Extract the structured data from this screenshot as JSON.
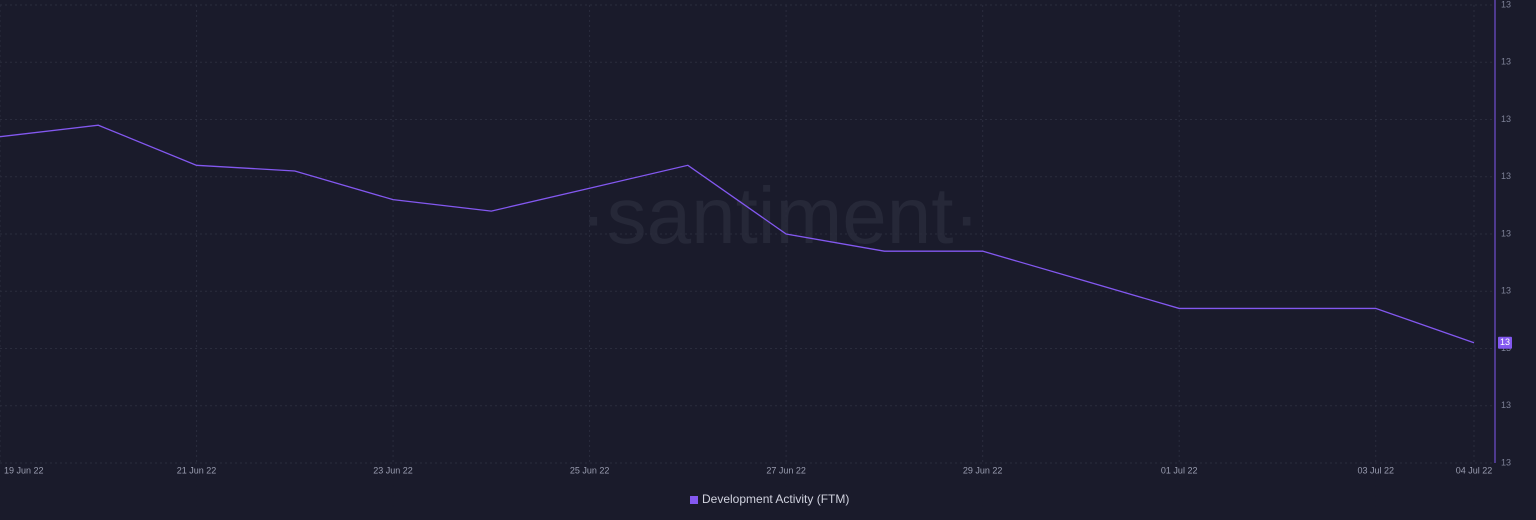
{
  "chart_data": {
    "type": "line",
    "watermark": "·santiment·",
    "categories": [
      "19 Jun 22",
      null,
      "21 Jun 22",
      null,
      "23 Jun 22",
      null,
      "25 Jun 22",
      null,
      "27 Jun 22",
      null,
      "29 Jun 22",
      null,
      "01 Jul 22",
      null,
      "03 Jul 22",
      "04 Jul 22"
    ],
    "series": [
      {
        "name": "Development Activity (FTM)",
        "color": "#8358f0",
        "values": [
          13.17,
          13.19,
          13.12,
          13.11,
          13.06,
          13.04,
          13.08,
          13.12,
          13.0,
          12.97,
          12.97,
          12.92,
          12.87,
          12.87,
          12.87,
          12.81
        ],
        "value_labels": [
          null,
          null,
          null,
          null,
          null,
          null,
          null,
          null,
          null,
          null,
          null,
          null,
          null,
          null,
          null,
          "13"
        ]
      }
    ],
    "ylim": [
      12.6,
      13.4
    ],
    "yticks": [
      {
        "value": 12.6,
        "label": "13"
      },
      {
        "value": 12.7,
        "label": "13"
      },
      {
        "value": 12.8,
        "label": "13"
      },
      {
        "value": 12.9,
        "label": "13"
      },
      {
        "value": 13.0,
        "label": "13"
      },
      {
        "value": 13.1,
        "label": "13"
      },
      {
        "value": 13.2,
        "label": "13"
      },
      {
        "value": 13.3,
        "label": "13"
      },
      {
        "value": 13.4,
        "label": "13"
      }
    ],
    "grid": true
  }
}
